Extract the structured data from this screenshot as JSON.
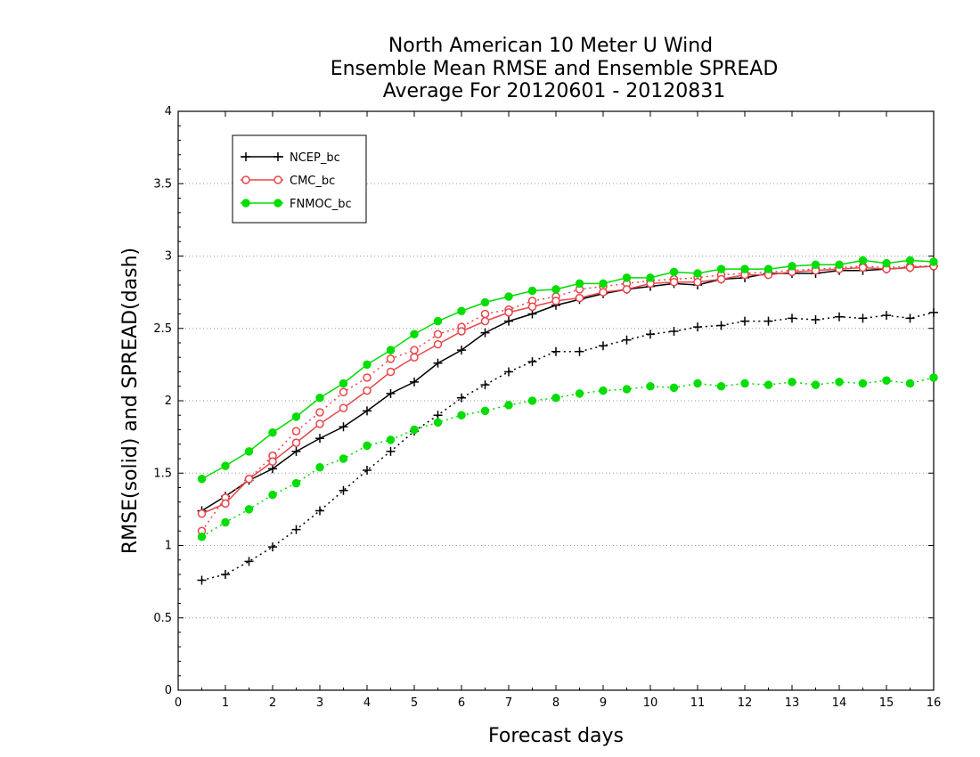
{
  "chart_data": {
    "type": "line",
    "title": [
      "North American 10 Meter U Wind",
      "Ensemble Mean RMSE and Ensemble SPREAD",
      "Average For 20120601 - 20120831"
    ],
    "xlabel": "Forecast days",
    "ylabel": "RMSE(solid) and SPREAD(dash)",
    "xlim": [
      0,
      16
    ],
    "ylim": [
      0,
      4
    ],
    "x_ticks": [
      "0",
      "1",
      "2",
      "3",
      "4",
      "5",
      "6",
      "7",
      "8",
      "9",
      "10",
      "11",
      "12",
      "13",
      "14",
      "15",
      "16"
    ],
    "y_ticks": [
      "0",
      "0.5",
      "1",
      "1.5",
      "2",
      "2.5",
      "3",
      "3.5",
      "4"
    ],
    "grid": "horizontal dotted",
    "legend_position": "top-left",
    "x": [
      0.5,
      1.0,
      1.5,
      2.0,
      2.5,
      3.0,
      3.5,
      4.0,
      4.5,
      5.0,
      5.5,
      6.0,
      6.5,
      7.0,
      7.5,
      8.0,
      8.5,
      9.0,
      9.5,
      10.0,
      10.5,
      11.0,
      11.5,
      12.0,
      12.5,
      13.0,
      13.5,
      14.0,
      14.5,
      15.0,
      15.5,
      16.0
    ],
    "series": [
      {
        "name": "NCEP_bc",
        "color": "#000000",
        "marker": "plus",
        "rmse": [
          1.24,
          1.34,
          1.45,
          1.53,
          1.65,
          1.74,
          1.82,
          1.93,
          2.05,
          2.13,
          2.26,
          2.35,
          2.47,
          2.55,
          2.6,
          2.66,
          2.7,
          2.74,
          2.77,
          2.79,
          2.81,
          2.8,
          2.84,
          2.85,
          2.88,
          2.88,
          2.88,
          2.9,
          2.9,
          2.91,
          2.92,
          2.93
        ],
        "spread": [
          0.76,
          0.8,
          0.89,
          0.99,
          1.11,
          1.24,
          1.38,
          1.52,
          1.65,
          1.79,
          1.9,
          2.02,
          2.11,
          2.2,
          2.27,
          2.34,
          2.34,
          2.38,
          2.42,
          2.46,
          2.48,
          2.51,
          2.52,
          2.55,
          2.55,
          2.57,
          2.56,
          2.58,
          2.57,
          2.59,
          2.57,
          2.61
        ]
      },
      {
        "name": "CMC_bc",
        "color": "#e8474a",
        "marker": "open-circle",
        "rmse": [
          1.22,
          1.29,
          1.46,
          1.58,
          1.71,
          1.84,
          1.95,
          2.07,
          2.2,
          2.3,
          2.39,
          2.48,
          2.55,
          2.61,
          2.65,
          2.69,
          2.71,
          2.75,
          2.77,
          2.81,
          2.82,
          2.82,
          2.84,
          2.87,
          2.87,
          2.89,
          2.9,
          2.91,
          2.92,
          2.91,
          2.92,
          2.93
        ],
        "spread": [
          1.1,
          1.33,
          1.46,
          1.62,
          1.79,
          1.92,
          2.06,
          2.16,
          2.29,
          2.35,
          2.46,
          2.51,
          2.6,
          2.63,
          2.69,
          2.72,
          2.77,
          2.79,
          2.81,
          2.83,
          2.84,
          2.85,
          2.87,
          2.88,
          2.89,
          2.9,
          2.91,
          2.92,
          2.93,
          2.92,
          2.93,
          2.93
        ]
      },
      {
        "name": "FNMOC_bc",
        "color": "#00dd00",
        "marker": "filled-circle",
        "rmse": [
          1.46,
          1.55,
          1.65,
          1.78,
          1.89,
          2.02,
          2.12,
          2.25,
          2.35,
          2.46,
          2.55,
          2.62,
          2.68,
          2.72,
          2.76,
          2.77,
          2.81,
          2.81,
          2.85,
          2.85,
          2.89,
          2.88,
          2.91,
          2.91,
          2.91,
          2.93,
          2.94,
          2.94,
          2.97,
          2.95,
          2.97,
          2.96
        ],
        "spread": [
          1.06,
          1.16,
          1.25,
          1.35,
          1.43,
          1.54,
          1.6,
          1.69,
          1.73,
          1.8,
          1.85,
          1.9,
          1.93,
          1.97,
          2.0,
          2.02,
          2.05,
          2.07,
          2.08,
          2.1,
          2.09,
          2.12,
          2.1,
          2.12,
          2.11,
          2.13,
          2.11,
          2.13,
          2.12,
          2.14,
          2.12,
          2.16
        ]
      }
    ]
  }
}
